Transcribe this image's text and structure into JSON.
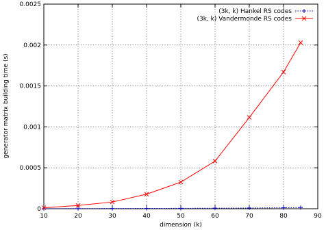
{
  "chart_data": {
    "type": "line",
    "xlabel": "dimension (k)",
    "ylabel": "generator matrix building time (s)",
    "xlim": [
      10,
      90
    ],
    "ylim": [
      0,
      0.0025
    ],
    "xticks": [
      10,
      20,
      30,
      40,
      50,
      60,
      70,
      80,
      90
    ],
    "yticks": [
      0,
      0.0005,
      0.001,
      0.0015,
      0.002,
      0.0025
    ],
    "ytick_labels": [
      "0",
      "0.0005",
      "0.001",
      "0.0015",
      "0.002",
      "0.0025"
    ],
    "grid": true,
    "legend_position": "top-right",
    "series": [
      {
        "name": "(3k, k) Hankel RS codes",
        "color": "#0000cc",
        "line_style": "dotted",
        "marker": "plus",
        "x": [
          10,
          20,
          30,
          40,
          50,
          60,
          70,
          80,
          85
        ],
        "y": [
          1e-06,
          2e-06,
          3e-06,
          4e-06,
          5e-06,
          7e-06,
          9e-06,
          1.2e-05,
          1.5e-05
        ]
      },
      {
        "name": "(3k, k) Vandermonde RS codes",
        "color": "#ff0000",
        "line_style": "solid",
        "marker": "cross",
        "x": [
          10,
          20,
          30,
          40,
          50,
          60,
          70,
          80,
          85
        ],
        "y": [
          1.2e-05,
          4e-05,
          8.2e-05,
          0.000178,
          0.000325,
          0.000582,
          0.001115,
          0.00167,
          0.00203
        ]
      }
    ]
  }
}
